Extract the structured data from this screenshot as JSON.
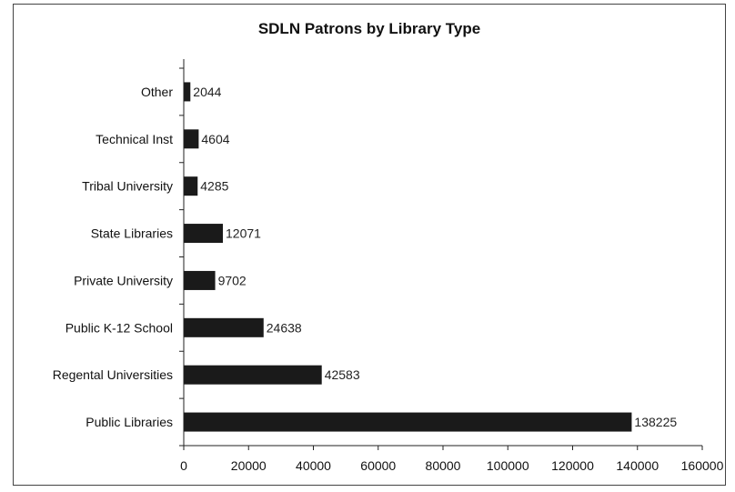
{
  "chart_data": {
    "type": "bar",
    "orientation": "horizontal",
    "title": "SDLN Patrons by Library Type",
    "xlabel": "",
    "ylabel": "",
    "categories": [
      "Public Libraries",
      "Regental Universities",
      "Public K-12 School",
      "Private University",
      "State Libraries",
      "Tribal University",
      "Technical Inst",
      "Other"
    ],
    "values": [
      138225,
      42583,
      24638,
      9702,
      12071,
      4285,
      4604,
      2044
    ],
    "xlim": [
      0,
      160000
    ],
    "xticks": [
      0,
      20000,
      40000,
      60000,
      80000,
      100000,
      120000,
      140000,
      160000
    ],
    "grid": false,
    "legend": "none",
    "bar_color": "#1a1a1a"
  }
}
